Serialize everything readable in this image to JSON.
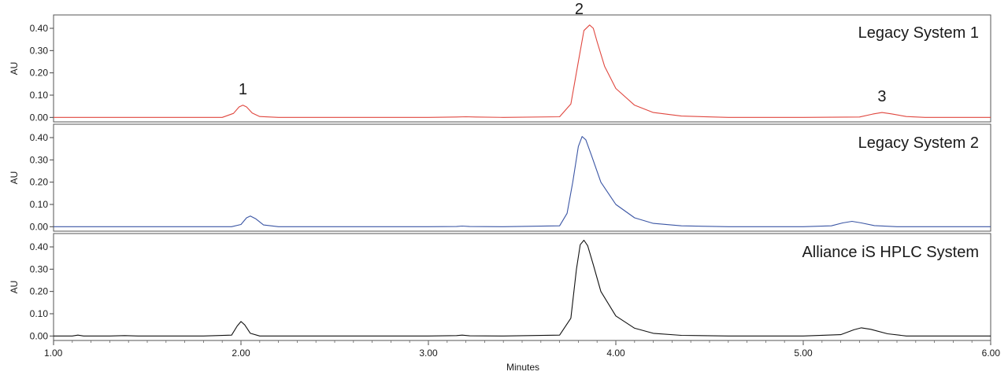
{
  "chart_data": {
    "type": "line",
    "xlabel": "Minutes",
    "xlim": [
      1.0,
      6.0
    ],
    "xticks": [
      "1.00",
      "2.00",
      "3.00",
      "4.00",
      "5.00",
      "6.00"
    ],
    "panels": [
      {
        "title": "Legacy System 1",
        "ylabel": "AU",
        "ylim": [
          -0.02,
          0.46
        ],
        "yticks": [
          "0.00",
          "0.10",
          "0.20",
          "0.30",
          "0.40"
        ],
        "color": "#e0473f",
        "peak_labels": [
          {
            "text": "1",
            "x": 2.01,
            "y": 0.055
          },
          {
            "text": "2",
            "x": 3.87,
            "y": 0.415
          },
          {
            "text": "3",
            "x": 5.42,
            "y": 0.022
          }
        ],
        "series": {
          "x": [
            1.0,
            1.5,
            1.9,
            1.96,
            1.99,
            2.01,
            2.03,
            2.06,
            2.1,
            2.2,
            3.0,
            3.15,
            3.2,
            3.25,
            3.4,
            3.7,
            3.76,
            3.8,
            3.83,
            3.86,
            3.88,
            3.9,
            3.94,
            4.0,
            4.1,
            4.2,
            4.35,
            4.6,
            5.0,
            5.3,
            5.37,
            5.42,
            5.47,
            5.55,
            5.65,
            6.0
          ],
          "y": [
            0.0,
            0.0,
            0.0,
            0.018,
            0.047,
            0.055,
            0.047,
            0.02,
            0.004,
            0.0,
            0.0,
            0.002,
            0.003,
            0.002,
            0.0,
            0.003,
            0.06,
            0.25,
            0.39,
            0.415,
            0.4,
            0.34,
            0.23,
            0.13,
            0.055,
            0.022,
            0.006,
            0.0,
            0.0,
            0.002,
            0.015,
            0.022,
            0.016,
            0.004,
            0.0,
            0.0
          ]
        }
      },
      {
        "title": "Legacy System 2",
        "ylabel": "AU",
        "ylim": [
          -0.02,
          0.46
        ],
        "yticks": [
          "0.00",
          "0.10",
          "0.20",
          "0.30",
          "0.40"
        ],
        "color": "#3a55a4",
        "series": {
          "x": [
            1.0,
            1.5,
            1.95,
            2.0,
            2.03,
            2.05,
            2.08,
            2.12,
            2.2,
            3.0,
            3.15,
            3.18,
            3.22,
            3.4,
            3.7,
            3.74,
            3.77,
            3.8,
            3.82,
            3.84,
            3.87,
            3.92,
            4.0,
            4.1,
            4.2,
            4.35,
            4.6,
            5.0,
            5.15,
            5.21,
            5.26,
            5.31,
            5.38,
            5.5,
            6.0
          ],
          "y": [
            0.0,
            0.0,
            0.0,
            0.01,
            0.04,
            0.048,
            0.035,
            0.008,
            0.0,
            0.0,
            0.001,
            0.003,
            0.001,
            0.0,
            0.004,
            0.06,
            0.2,
            0.36,
            0.405,
            0.39,
            0.32,
            0.2,
            0.1,
            0.04,
            0.015,
            0.004,
            0.0,
            0.0,
            0.004,
            0.017,
            0.024,
            0.017,
            0.005,
            0.0,
            0.0
          ]
        }
      },
      {
        "title": "Alliance iS HPLC System",
        "ylabel": "AU",
        "ylim": [
          -0.02,
          0.46
        ],
        "yticks": [
          "0.00",
          "0.10",
          "0.20",
          "0.30",
          "0.40"
        ],
        "color": "#111111",
        "series": {
          "x": [
            1.0,
            1.1,
            1.13,
            1.16,
            1.3,
            1.38,
            1.45,
            1.8,
            1.95,
            1.98,
            2.0,
            2.02,
            2.05,
            2.1,
            2.2,
            3.0,
            3.15,
            3.18,
            3.22,
            3.4,
            3.7,
            3.76,
            3.79,
            3.81,
            3.83,
            3.85,
            3.88,
            3.92,
            4.0,
            4.1,
            4.2,
            4.35,
            4.6,
            5.0,
            5.2,
            5.27,
            5.31,
            5.36,
            5.45,
            5.55,
            6.0
          ],
          "y": [
            0.0,
            0.0,
            0.004,
            0.0,
            0.0,
            0.002,
            0.0,
            0.0,
            0.004,
            0.045,
            0.065,
            0.05,
            0.012,
            0.0,
            0.0,
            0.0,
            0.002,
            0.004,
            0.001,
            0.0,
            0.004,
            0.08,
            0.3,
            0.41,
            0.43,
            0.405,
            0.32,
            0.2,
            0.09,
            0.035,
            0.012,
            0.003,
            0.0,
            0.0,
            0.006,
            0.028,
            0.037,
            0.03,
            0.01,
            0.0,
            0.0
          ]
        }
      }
    ]
  }
}
